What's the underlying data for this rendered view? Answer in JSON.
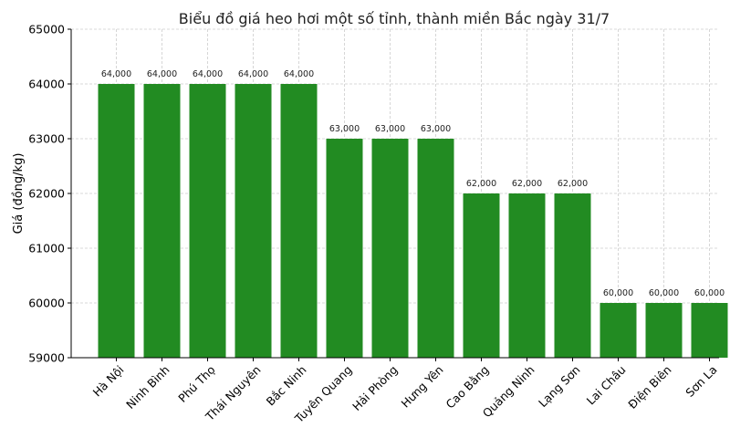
{
  "chart_data": {
    "type": "bar",
    "title": "Biểu đồ giá heo hơi một số tỉnh, thành miền Bắc ngày 31/7",
    "xlabel": "",
    "ylabel": "Giá (đồng/kg)",
    "ylim": [
      59000,
      65000
    ],
    "yticks": [
      59000,
      60000,
      61000,
      62000,
      63000,
      64000,
      65000
    ],
    "grid": true,
    "bar_color": "#228b22",
    "categories": [
      "Hà Nội",
      "Ninh Bình",
      "Phú Thọ",
      "Thái Nguyên",
      "Bắc Ninh",
      "Tuyên Quang",
      "Hải Phòng",
      "Hưng Yên",
      "Cao Bằng",
      "Quảng Ninh",
      "Lạng Sơn",
      "Lai Châu",
      "Điện Biên",
      "Sơn La"
    ],
    "values": [
      64000,
      64000,
      64000,
      64000,
      64000,
      63000,
      63000,
      63000,
      62000,
      62000,
      62000,
      60000,
      60000,
      60000
    ],
    "data_labels": [
      "64,000",
      "64,000",
      "64,000",
      "64,000",
      "64,000",
      "63,000",
      "63,000",
      "63,000",
      "62,000",
      "62,000",
      "62,000",
      "60,000",
      "60,000",
      "60,000"
    ]
  }
}
